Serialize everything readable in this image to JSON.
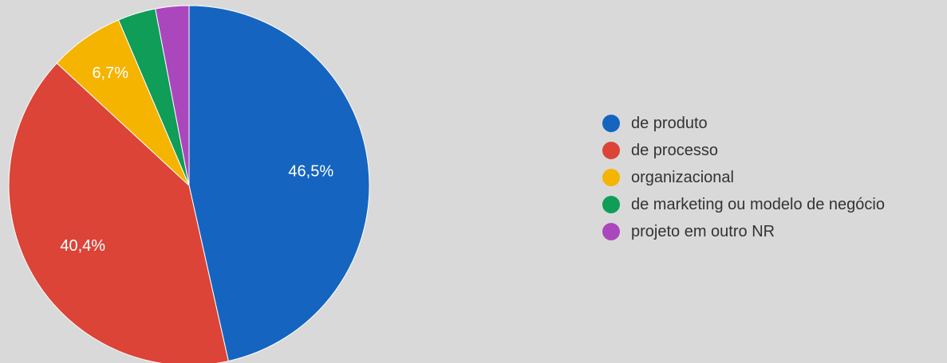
{
  "chart_data": {
    "type": "pie",
    "title": "",
    "legend_position": "right",
    "slices": [
      {
        "label": "de produto",
        "value": 46.5,
        "value_label": "46,5%",
        "color": "#1565c0"
      },
      {
        "label": "de processo",
        "value": 40.4,
        "value_label": "40,4%",
        "color": "#db4437"
      },
      {
        "label": "organizacional",
        "value": 6.7,
        "value_label": "6,7%",
        "color": "#f4b400"
      },
      {
        "label": "de marketing ou modelo de negócio",
        "value": 3.4,
        "value_label": "",
        "color": "#0f9d58"
      },
      {
        "label": "projeto em outro NR",
        "value": 3.0,
        "value_label": "",
        "color": "#ab47bc"
      }
    ]
  }
}
